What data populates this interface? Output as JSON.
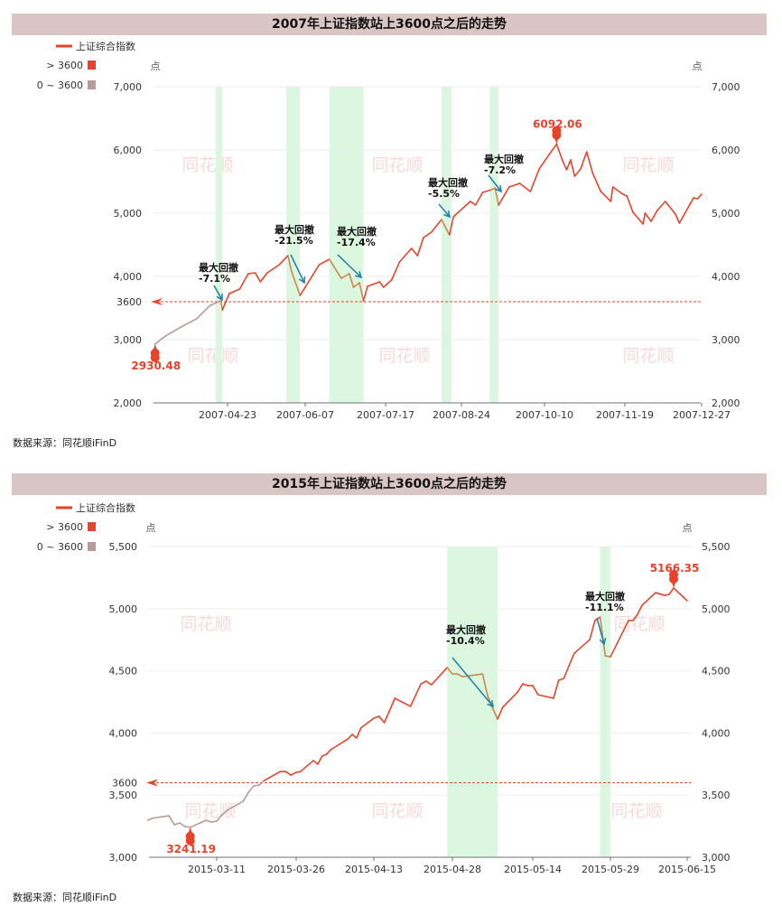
{
  "chart_data": [
    {
      "type": "line",
      "title": "2007年上证指数站上3600点之后的走势",
      "source": "数据来源：同花顺iFinD",
      "unit": "点",
      "watermark": "同花顺",
      "legend": {
        "series_name": "上证综合指数",
        "pieces": [
          {
            "label": "> 3600",
            "color": "#e8432a"
          },
          {
            "label": "0 ~ 3600",
            "color": "#b79a9a"
          }
        ]
      },
      "colors": {
        "above": "#e8432a",
        "below": "#b79a9a",
        "drawdown": "#c98a52",
        "band": "#dcf7df",
        "arrow": "#1f7fa3",
        "reference": "#e8432a"
      },
      "ylim": [
        2000,
        7000
      ],
      "y_ticks": [
        2000,
        3000,
        4000,
        5000,
        6000,
        7000
      ],
      "y_tick_labels": [
        "2,000",
        "3,000",
        "4,000",
        "5,000",
        "6,000",
        "7,000"
      ],
      "reference_line": {
        "value": 3600,
        "label": "3600"
      },
      "x_ticks": [
        "2007-04-23",
        "2007-06-07",
        "2007-07-17",
        "2007-08-24",
        "2007-10-10",
        "2007-11-19",
        "2007-12-27"
      ],
      "series": [
        {
          "name": "上证综合指数",
          "x": [
            "2007-03-12",
            "2007-03-18",
            "2007-03-27",
            "2007-04-05",
            "2007-04-13",
            "2007-04-19",
            "2007-04-20",
            "2007-04-24",
            "2007-04-30",
            "2007-05-05",
            "2007-05-09",
            "2007-05-12",
            "2007-05-16",
            "2007-05-23",
            "2007-05-28",
            "2007-05-30",
            "2007-06-04",
            "2007-06-07",
            "2007-06-14",
            "2007-06-19",
            "2007-06-25",
            "2007-06-29",
            "2007-07-01",
            "2007-07-04",
            "2007-07-06",
            "2007-07-08",
            "2007-07-14",
            "2007-07-16",
            "2007-07-20",
            "2007-07-24",
            "2007-07-30",
            "2007-08-02",
            "2007-08-05",
            "2007-08-09",
            "2007-08-14",
            "2007-08-18",
            "2007-08-20",
            "2007-08-29",
            "2007-09-01",
            "2007-09-05",
            "2007-09-10",
            "2007-09-12",
            "2007-09-14",
            "2007-09-20",
            "2007-09-26",
            "2007-10-02",
            "2007-10-07",
            "2007-10-12",
            "2007-10-16",
            "2007-10-19",
            "2007-10-21",
            "2007-10-23",
            "2007-10-25",
            "2007-10-28",
            "2007-10-31",
            "2007-11-03",
            "2007-11-07",
            "2007-11-12",
            "2007-11-13",
            "2007-11-18",
            "2007-11-20",
            "2007-11-23",
            "2007-11-28",
            "2007-11-29",
            "2007-12-02",
            "2007-12-05",
            "2007-12-09",
            "2007-12-14",
            "2007-12-16",
            "2007-12-23",
            "2007-12-25",
            "2007-12-27"
          ],
          "y": [
            2930.48,
            3057,
            3200,
            3329,
            3543,
            3614,
            3471,
            3729,
            3800,
            4043,
            4057,
            3914,
            4057,
            4186,
            4329,
            4086,
            3700,
            3829,
            4186,
            4271,
            3971,
            4043,
            3829,
            3900,
            3614,
            3843,
            3914,
            3829,
            3943,
            4229,
            4443,
            4329,
            4614,
            4700,
            4900,
            4657,
            4943,
            5186,
            5129,
            5329,
            5371,
            5400,
            5129,
            5414,
            5471,
            5343,
            5700,
            5914,
            6092.06,
            5829,
            5686,
            5843,
            5586,
            5700,
            5971,
            5629,
            5343,
            5186,
            5414,
            5300,
            5271,
            5014,
            4829,
            5000,
            4871,
            5043,
            5186,
            4986,
            4843,
            5243,
            5229,
            5300
          ]
        }
      ],
      "highlight_bands": [
        [
          "2007-04-16",
          "2007-04-20"
        ],
        [
          "2007-05-27",
          "2007-06-04"
        ],
        [
          "2007-06-19",
          "2007-07-06"
        ],
        [
          "2007-08-14",
          "2007-08-19"
        ],
        [
          "2007-09-09",
          "2007-09-14"
        ]
      ],
      "annotations": [
        {
          "label": "最大回撤",
          "value": "-7.1%"
        },
        {
          "label": "最大回撤",
          "value": "-21.5%"
        },
        {
          "label": "最大回撤",
          "value": "-17.4%"
        },
        {
          "label": "最大回撤",
          "value": "-5.5%"
        },
        {
          "label": "最大回撤",
          "value": "-7.2%"
        }
      ],
      "markers": {
        "min": {
          "date": "2007-03-12",
          "value": 2930.48,
          "label": "2930.48"
        },
        "max": {
          "date": "2007-10-16",
          "value": 6092.06,
          "label": "6092.06"
        }
      },
      "grid": true
    },
    {
      "type": "line",
      "title": "2015年上证指数站上3600点之后的走势",
      "source": "数据来源：同花顺iFinD",
      "unit": "点",
      "watermark": "同花顺",
      "legend": {
        "series_name": "上证综合指数",
        "pieces": [
          {
            "label": "> 3600",
            "color": "#e8432a"
          },
          {
            "label": "0 ~ 3600",
            "color": "#b79a9a"
          }
        ]
      },
      "colors": {
        "above": "#e8432a",
        "below": "#b79a9a",
        "drawdown": "#c98a52",
        "band": "#dcf7df",
        "arrow": "#1f7fa3",
        "reference": "#e8432a"
      },
      "ylim": [
        3000,
        5500
      ],
      "y_ticks": [
        3000,
        3500,
        4000,
        4500,
        5000,
        5500
      ],
      "y_tick_labels": [
        "3,000",
        "3,500",
        "4,000",
        "4,500",
        "5,000",
        "5,500"
      ],
      "reference_line": {
        "value": 3600,
        "label": "3600"
      },
      "x_ticks": [
        "2015-03-11",
        "2015-03-26",
        "2015-04-13",
        "2015-04-28",
        "2015-05-14",
        "2015-05-29",
        "2015-06-15"
      ],
      "series": [
        {
          "name": "上证综合指数",
          "x": [
            "2015-02-26",
            "2015-02-27",
            "2015-03-02",
            "2015-03-03",
            "2015-03-04",
            "2015-03-05",
            "2015-03-06",
            "2015-03-09",
            "2015-03-10",
            "2015-03-11",
            "2015-03-12",
            "2015-03-13",
            "2015-03-16",
            "2015-03-17",
            "2015-03-18",
            "2015-03-19",
            "2015-03-20",
            "2015-03-23",
            "2015-03-24",
            "2015-03-25",
            "2015-03-26",
            "2015-03-27",
            "2015-03-30",
            "2015-03-31",
            "2015-04-01",
            "2015-04-02",
            "2015-04-03",
            "2015-04-07",
            "2015-04-08",
            "2015-04-09",
            "2015-04-10",
            "2015-04-13",
            "2015-04-14",
            "2015-04-15",
            "2015-04-16",
            "2015-04-17",
            "2015-04-20",
            "2015-04-21",
            "2015-04-22",
            "2015-04-23",
            "2015-04-24",
            "2015-04-27",
            "2015-04-28",
            "2015-04-29",
            "2015-04-30",
            "2015-05-04",
            "2015-05-05",
            "2015-05-06",
            "2015-05-07",
            "2015-05-08",
            "2015-05-11",
            "2015-05-12",
            "2015-05-13",
            "2015-05-14",
            "2015-05-15",
            "2015-05-18",
            "2015-05-19",
            "2015-05-20",
            "2015-05-21",
            "2015-05-22",
            "2015-05-25",
            "2015-05-26",
            "2015-05-27",
            "2015-05-28",
            "2015-05-29",
            "2015-06-01",
            "2015-06-02",
            "2015-06-03",
            "2015-06-04",
            "2015-06-05",
            "2015-06-08",
            "2015-06-09",
            "2015-06-10",
            "2015-06-11",
            "2015-06-12",
            "2015-06-15"
          ],
          "y": [
            3298,
            3316,
            3334,
            3262,
            3276,
            3247,
            3241.19,
            3298,
            3283,
            3291,
            3342,
            3378,
            3451,
            3523,
            3574,
            3581,
            3618,
            3690,
            3690,
            3661,
            3683,
            3690,
            3778,
            3749,
            3814,
            3828,
            3865,
            3952,
            3988,
            3959,
            4040,
            4119,
            4134,
            4083,
            4180,
            4279,
            4214,
            4305,
            4395,
            4417,
            4388,
            4526,
            4475,
            4475,
            4453,
            4475,
            4301,
            4200,
            4112,
            4206,
            4330,
            4395,
            4381,
            4381,
            4308,
            4279,
            4424,
            4439,
            4541,
            4640,
            4751,
            4904,
            4933,
            4620,
            4613,
            4831,
            4904,
            4904,
            4955,
            5027,
            5129,
            5118,
            5107,
            5115,
            5166.35,
            5064
          ]
        }
      ],
      "highlight_bands": [
        [
          "2015-04-27",
          "2015-05-07"
        ],
        [
          "2015-05-27",
          "2015-05-29"
        ]
      ],
      "annotations": [
        {
          "label": "最大回撤",
          "value": "-10.4%"
        },
        {
          "label": "最大回撤",
          "value": "-11.1%"
        }
      ],
      "markers": {
        "min": {
          "date": "2015-03-06",
          "value": 3241.19,
          "label": "3241.19"
        },
        "max": {
          "date": "2015-06-12",
          "value": 5166.35,
          "label": "5166.35"
        }
      },
      "grid": true
    }
  ]
}
